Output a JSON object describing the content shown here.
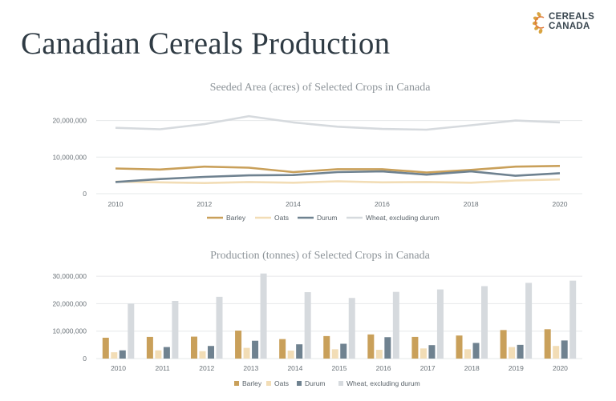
{
  "page_title": "Canadian Cereals Production",
  "logo": {
    "line1": "CEREALS",
    "line2": "CANADA",
    "icon": "cereals-canada-wheat-icon"
  },
  "colors": {
    "Barley": "#c9a05a",
    "Oats": "#f2ddb6",
    "Durum": "#6f8290",
    "Wheat, excluding durum": "#d6dade"
  },
  "chart_data": [
    {
      "type": "line",
      "title": "Seeded Area (acres) of Selected Crops in Canada",
      "x": [
        "2010",
        "2011",
        "2012",
        "2013",
        "2014",
        "2015",
        "2016",
        "2017",
        "2018",
        "2019",
        "2020"
      ],
      "x_tick_labels": [
        "2010",
        "2012",
        "2014",
        "2016",
        "2018",
        "2020"
      ],
      "y_tick_labels": [
        "0",
        "10,000,000",
        "20,000,000"
      ],
      "ylim": [
        0,
        20000000
      ],
      "grid": true,
      "legend": "bottom",
      "series": [
        {
          "name": "Barley",
          "values": [
            6900000,
            6600000,
            7400000,
            7100000,
            5900000,
            6700000,
            6700000,
            5800000,
            6500000,
            7400000,
            7600000
          ]
        },
        {
          "name": "Oats",
          "values": [
            3300000,
            3100000,
            2900000,
            3200000,
            3000000,
            3400000,
            3100000,
            3200000,
            3000000,
            3600000,
            3900000
          ]
        },
        {
          "name": "Durum",
          "values": [
            3200000,
            4000000,
            4600000,
            5000000,
            5100000,
            5900000,
            6100000,
            5200000,
            6100000,
            4900000,
            5600000
          ]
        },
        {
          "name": "Wheat, excluding durum",
          "values": [
            18000000,
            17600000,
            19000000,
            21200000,
            19500000,
            18300000,
            17700000,
            17500000,
            18700000,
            20000000,
            19500000
          ]
        }
      ]
    },
    {
      "type": "bar",
      "title": "Production (tonnes) of Selected Crops in Canada",
      "categories": [
        "2010",
        "2011",
        "2012",
        "2013",
        "2014",
        "2015",
        "2016",
        "2017",
        "2018",
        "2019",
        "2020"
      ],
      "y_tick_labels": [
        "0",
        "10,000,000",
        "20,000,000",
        "30,000,000"
      ],
      "ylim": [
        0,
        30000000
      ],
      "grid": true,
      "legend": "bottom",
      "series": [
        {
          "name": "Barley",
          "values": [
            7600000,
            7900000,
            8000000,
            10200000,
            7100000,
            8200000,
            8800000,
            7900000,
            8400000,
            10400000,
            10700000
          ]
        },
        {
          "name": "Oats",
          "values": [
            2300000,
            3000000,
            2700000,
            3900000,
            2900000,
            3400000,
            3200000,
            3700000,
            3400000,
            4200000,
            4600000
          ]
        },
        {
          "name": "Durum",
          "values": [
            3000000,
            4200000,
            4600000,
            6500000,
            5200000,
            5400000,
            7800000,
            4900000,
            5700000,
            5000000,
            6600000
          ]
        },
        {
          "name": "Wheat, excluding durum",
          "values": [
            20000000,
            21000000,
            22500000,
            31000000,
            24200000,
            22100000,
            24300000,
            25200000,
            26400000,
            27600000,
            28400000
          ]
        }
      ]
    }
  ]
}
